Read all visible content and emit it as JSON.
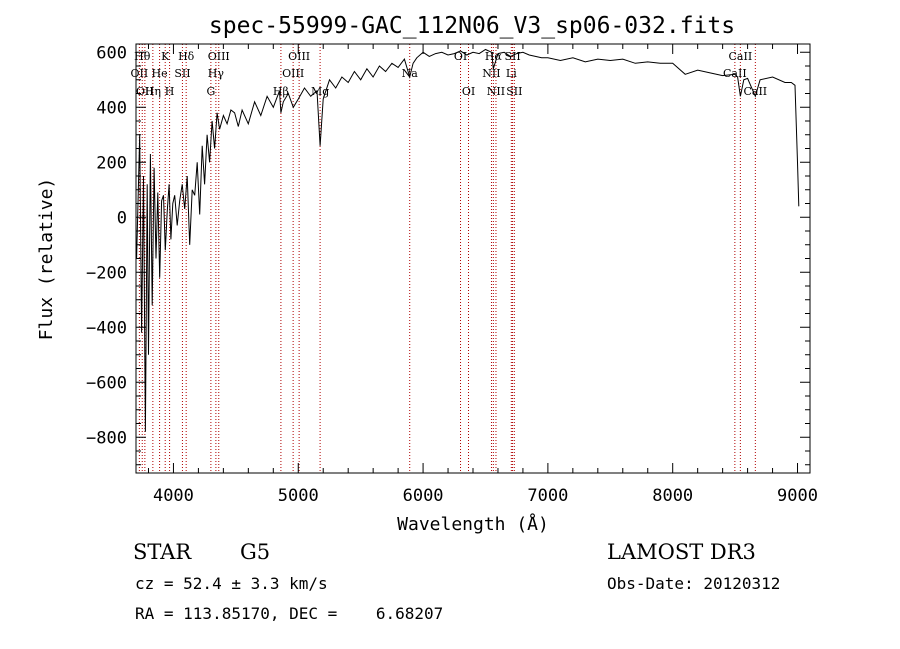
{
  "chart_data": {
    "type": "line",
    "title": "spec-55999-GAC_112N06_V3_sp06-032.fits",
    "xlabel": "Wavelength (Å)",
    "ylabel": "Flux (relative)",
    "xlim": [
      3700,
      9100
    ],
    "ylim": [
      -930,
      630
    ],
    "xticks": [
      4000,
      5000,
      6000,
      7000,
      8000,
      9000
    ],
    "yticks": [
      -800,
      -600,
      -400,
      -200,
      0,
      200,
      400,
      600
    ],
    "line_color": "#000000",
    "marker_color": "#b00000",
    "series": [
      {
        "name": "flux",
        "x": [
          3705,
          3730,
          3745,
          3760,
          3775,
          3790,
          3800,
          3815,
          3830,
          3845,
          3860,
          3875,
          3890,
          3905,
          3920,
          3935,
          3950,
          3965,
          3980,
          3995,
          4010,
          4030,
          4050,
          4070,
          4090,
          4110,
          4130,
          4150,
          4170,
          4190,
          4210,
          4230,
          4250,
          4270,
          4290,
          4310,
          4330,
          4350,
          4370,
          4400,
          4430,
          4460,
          4490,
          4520,
          4550,
          4600,
          4650,
          4700,
          4750,
          4800,
          4850,
          4861,
          4880,
          4920,
          4960,
          5000,
          5050,
          5100,
          5150,
          5175,
          5200,
          5250,
          5300,
          5350,
          5400,
          5450,
          5500,
          5550,
          5600,
          5650,
          5700,
          5750,
          5800,
          5850,
          5893,
          5920,
          5950,
          6000,
          6050,
          6100,
          6150,
          6200,
          6250,
          6300,
          6350,
          6400,
          6450,
          6500,
          6550,
          6563,
          6600,
          6650,
          6700,
          6750,
          6800,
          6850,
          6900,
          6950,
          7000,
          7100,
          7200,
          7300,
          7400,
          7500,
          7600,
          7700,
          7800,
          7900,
          8000,
          8100,
          8200,
          8300,
          8400,
          8498,
          8520,
          8542,
          8570,
          8600,
          8662,
          8700,
          8800,
          8900,
          8950,
          8980,
          9000,
          9010
        ],
        "y": [
          -150,
          300,
          -420,
          150,
          -780,
          120,
          -500,
          230,
          -320,
          180,
          -150,
          90,
          -220,
          60,
          80,
          -120,
          20,
          120,
          -80,
          50,
          80,
          -30,
          60,
          120,
          30,
          150,
          -100,
          100,
          80,
          200,
          10,
          260,
          120,
          300,
          200,
          350,
          250,
          380,
          320,
          370,
          340,
          390,
          380,
          330,
          390,
          340,
          420,
          370,
          440,
          400,
          460,
          380,
          420,
          450,
          400,
          430,
          470,
          440,
          460,
          260,
          430,
          500,
          470,
          510,
          490,
          530,
          500,
          540,
          510,
          550,
          530,
          560,
          545,
          575,
          510,
          560,
          580,
          600,
          585,
          595,
          600,
          590,
          595,
          605,
          590,
          600,
          595,
          610,
          600,
          540,
          595,
          600,
          585,
          595,
          600,
          590,
          585,
          580,
          580,
          570,
          580,
          565,
          575,
          570,
          575,
          560,
          565,
          560,
          560,
          520,
          535,
          525,
          515,
          520,
          510,
          440,
          500,
          505,
          440,
          500,
          510,
          490,
          490,
          480,
          200,
          40
        ]
      }
    ],
    "line_markers": [
      {
        "wave": 3727,
        "label": "OII",
        "row": 2
      },
      {
        "wave": 3750,
        "label": "Hθ",
        "row": 1
      },
      {
        "wave": 3771,
        "label": "OII",
        "row": 3
      },
      {
        "wave": 3835,
        "label": "Hη",
        "row": 3
      },
      {
        "wave": 3889,
        "label": "He",
        "row": 2
      },
      {
        "wave": 3934,
        "label": "K",
        "row": 1
      },
      {
        "wave": 3969,
        "label": "H",
        "row": 3
      },
      {
        "wave": 4072,
        "label": "SII",
        "row": 2
      },
      {
        "wave": 4102,
        "label": "Hδ",
        "row": 1
      },
      {
        "wave": 4300,
        "label": "G",
        "row": 3
      },
      {
        "wave": 4340,
        "label": "Hγ",
        "row": 2
      },
      {
        "wave": 4363,
        "label": "OIII",
        "row": 1
      },
      {
        "wave": 4861,
        "label": "Hβ",
        "row": 3
      },
      {
        "wave": 4959,
        "label": "OIII",
        "row": 2
      },
      {
        "wave": 5007,
        "label": "OIII",
        "row": 1
      },
      {
        "wave": 5175,
        "label": "Mg",
        "row": 3
      },
      {
        "wave": 5893,
        "label": "Na",
        "row": 2
      },
      {
        "wave": 6300,
        "label": "OI",
        "row": 1
      },
      {
        "wave": 6364,
        "label": "OI",
        "row": 3
      },
      {
        "wave": 6548,
        "label": "NII",
        "row": 2
      },
      {
        "wave": 6563,
        "label": "Hα",
        "row": 1
      },
      {
        "wave": 6584,
        "label": "NII",
        "row": 3
      },
      {
        "wave": 6707,
        "label": "Li",
        "row": 2
      },
      {
        "wave": 6717,
        "label": "SII",
        "row": 1
      },
      {
        "wave": 6731,
        "label": "SII",
        "row": 3
      },
      {
        "wave": 8498,
        "label": "CaII",
        "row": 2
      },
      {
        "wave": 8542,
        "label": "CaII",
        "row": 1
      },
      {
        "wave": 8662,
        "label": "CaII",
        "row": 3
      }
    ]
  },
  "caption": {
    "object_type": "STAR",
    "subclass": "G5",
    "survey": "LAMOST DR3",
    "redshift": "cz = 52.4 ± 3.3 km/s",
    "obs_date": "Obs-Date: 20120312",
    "coords": "RA = 113.85170, DEC =    6.68207"
  }
}
